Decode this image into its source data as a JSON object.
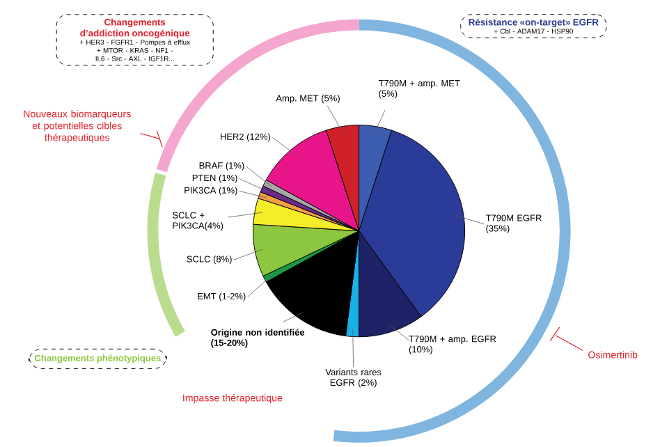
{
  "chart_data": {
    "type": "pie",
    "categories": [
      "T790M + amp. MET (5%)",
      "T790M EGFR (35%)",
      "T790M + amp. EGFR (10%)",
      "Variants rares EGFR (2%)",
      "Origine non identifiée (15-20%)",
      "EMT (1-2%)",
      "SCLC (8%)",
      "SCLC + PIK3CA(4%)",
      "PIK3CA (1%)",
      "PTEN (1%)",
      "BRAF (1%)",
      "HER2 (12%)",
      "Amp. MET (5%)"
    ],
    "values": [
      5,
      35,
      10,
      2,
      15,
      1,
      8,
      4,
      1,
      1,
      1,
      12,
      5
    ],
    "colors": [
      "#3d5db0",
      "#2b3b98",
      "#1f2266",
      "#1ab0e8",
      "#000000",
      "#1a9a40",
      "#8dc63f",
      "#f5ec2a",
      "#f4a040",
      "#6a2a8a",
      "#a8a8a8",
      "#e8158a",
      "#d0202a"
    ],
    "annotations": [
      "Changements d’addiction oncogénique",
      "+ HER3 - FGFR1 - Pompes à efflux",
      "+ MTOR - KRAS - NF1 - IL6 - Src - AXL - IGF1R...",
      "Résistance «on-target» EGFR",
      "+ Cbl - ADAM17 - HSP90",
      "Nouveaux biomarqueurs et potentielles cibles thérapeutiques",
      "Changements phénotypiques",
      "Impasse thérapeutique",
      "Osimertinib"
    ]
  }
}
